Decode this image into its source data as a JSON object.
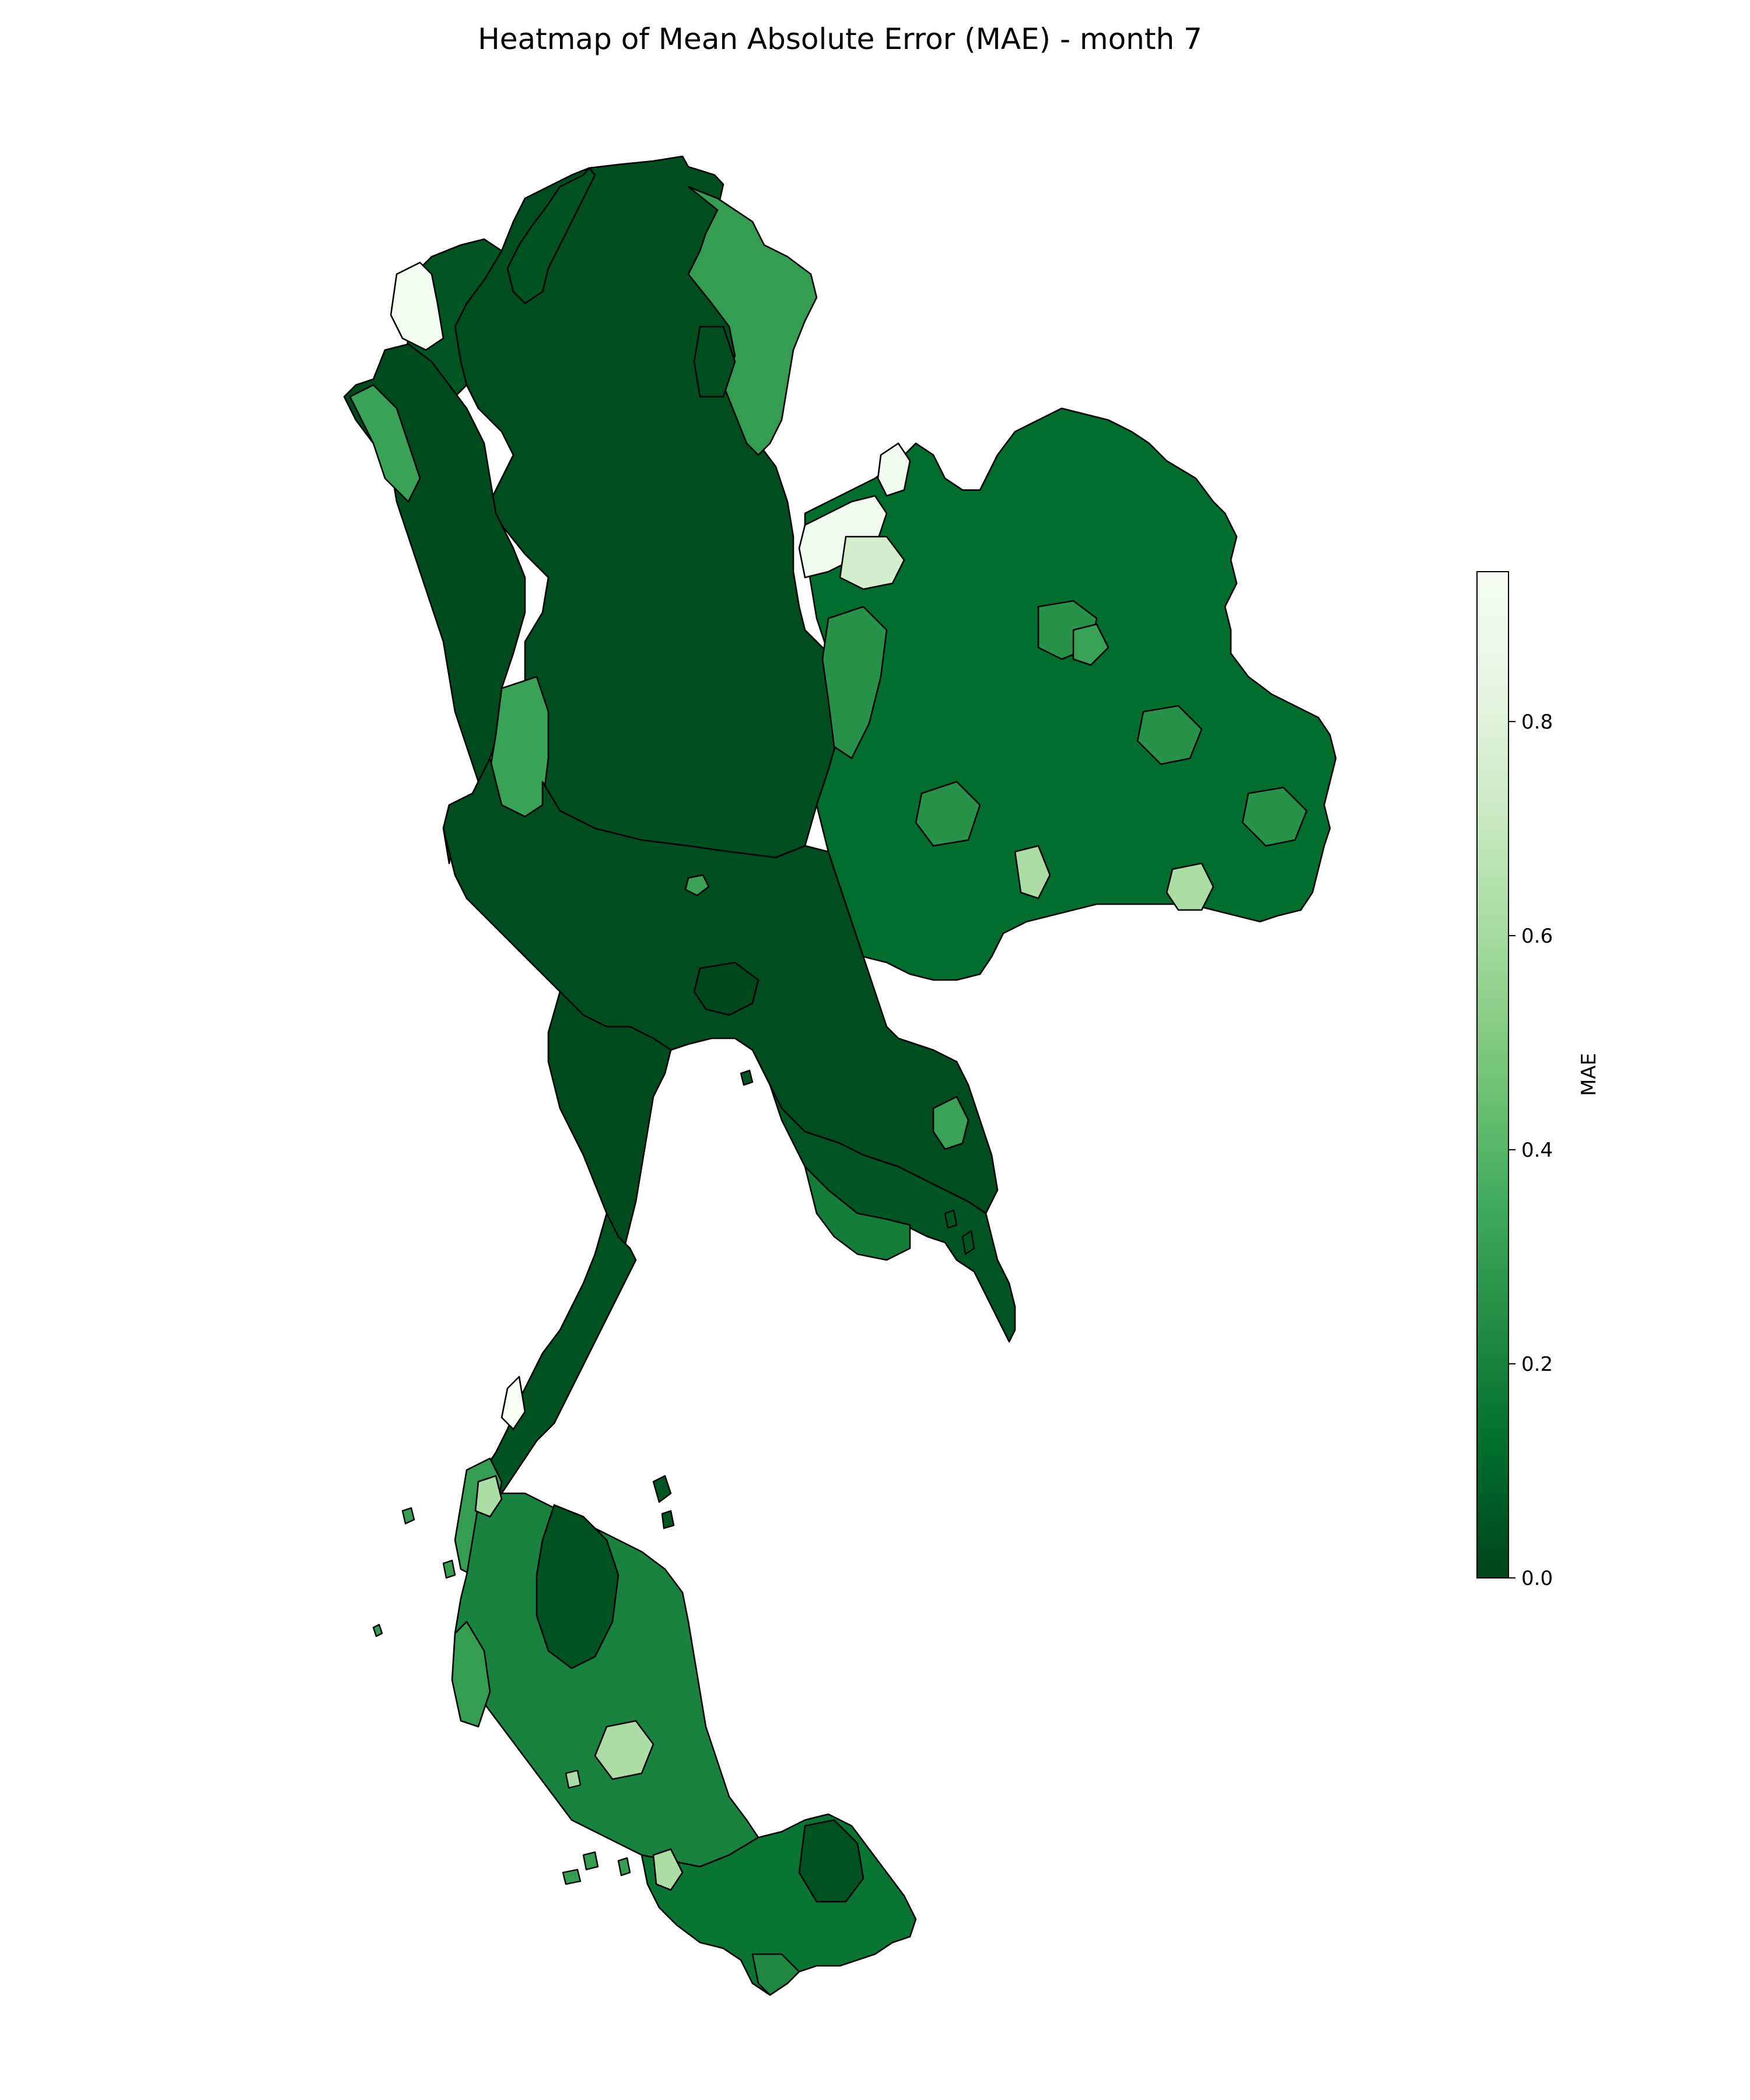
{
  "title": "Heatmap of Mean Absolute Error (MAE) - month 7",
  "colorbar": {
    "label": "MAE",
    "min": 0.0,
    "max": 0.94,
    "ticks": [
      {
        "value": 0.0,
        "label": "0.0"
      },
      {
        "value": 0.2,
        "label": "0.2"
      },
      {
        "value": 0.4,
        "label": "0.4"
      },
      {
        "value": 0.6,
        "label": "0.6"
      },
      {
        "value": 0.8,
        "label": "0.8"
      }
    ],
    "colormap": "Greens_r",
    "color_stops": [
      "#00441b",
      "#006d2c",
      "#238b45",
      "#41ab5d",
      "#74c476",
      "#a1d99b",
      "#c7e9c0",
      "#e5f5e0",
      "#f7fcf5"
    ]
  },
  "map_data": {
    "type": "choropleth",
    "region_outline_color": "#000000",
    "regions": [
      {
        "id": "north-west-corner",
        "mae": 0.05
      },
      {
        "id": "far-north",
        "mae": 0.04
      },
      {
        "id": "north-east-lobe",
        "mae": 0.3
      },
      {
        "id": "north-central",
        "mae": 0.03
      },
      {
        "id": "north-west-high-error",
        "mae": 0.92
      },
      {
        "id": "west-border",
        "mae": 0.02
      },
      {
        "id": "west-border-patch",
        "mae": 0.32
      },
      {
        "id": "northeast-plateau",
        "mae": 0.12
      },
      {
        "id": "northeast-mekong-corner",
        "mae": 0.9
      },
      {
        "id": "northeast-light-patch",
        "mae": 0.75
      },
      {
        "id": "east-edge",
        "mae": 0.26
      },
      {
        "id": "central-plain",
        "mae": 0.03
      },
      {
        "id": "bangkok-metro",
        "mae": 0.01
      },
      {
        "id": "east-coast",
        "mae": 0.05
      },
      {
        "id": "east-coast-south",
        "mae": 0.18
      },
      {
        "id": "south-isthmus",
        "mae": 0.04
      },
      {
        "id": "south-west-coast",
        "mae": 0.3
      },
      {
        "id": "south-west-high-error",
        "mae": 0.95
      },
      {
        "id": "south-central",
        "mae": 0.2
      },
      {
        "id": "south-light-patch",
        "mae": 0.62
      },
      {
        "id": "deep-south",
        "mae": 0.15
      },
      {
        "id": "deep-south-tip",
        "mae": 0.22
      }
    ]
  }
}
